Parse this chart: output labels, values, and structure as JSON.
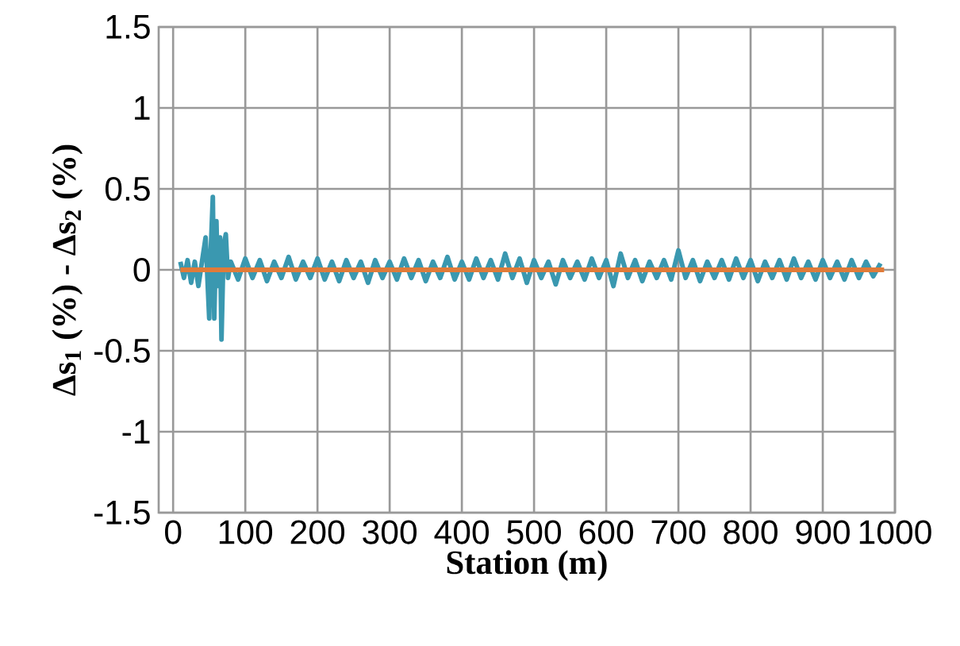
{
  "chart_data": {
    "type": "line",
    "xlabel": "Station (m)",
    "ylabel": "Δs$_{1}$ (%) - Δs$_{2}$ (%)",
    "xlim": [
      -20,
      1000
    ],
    "ylim": [
      -1.5,
      1.5
    ],
    "xticks": [
      0,
      100,
      200,
      300,
      400,
      500,
      600,
      700,
      800,
      900,
      1000
    ],
    "yticks": [
      -1.5,
      -1,
      -0.5,
      0,
      0.5,
      1,
      1.5
    ],
    "grid": true,
    "series": [
      {
        "color": "#3a98b0",
        "x": [
          10,
          15,
          20,
          25,
          30,
          35,
          40,
          45,
          48,
          50,
          52,
          55,
          57,
          60,
          62,
          65,
          67,
          70,
          73,
          76,
          80,
          90,
          100,
          110,
          120,
          130,
          140,
          150,
          160,
          170,
          180,
          190,
          200,
          210,
          220,
          230,
          240,
          250,
          260,
          270,
          280,
          290,
          300,
          310,
          320,
          330,
          340,
          350,
          360,
          370,
          380,
          390,
          400,
          410,
          420,
          430,
          440,
          450,
          460,
          470,
          480,
          490,
          500,
          510,
          520,
          530,
          540,
          550,
          560,
          570,
          580,
          590,
          600,
          610,
          620,
          630,
          640,
          650,
          660,
          670,
          680,
          690,
          700,
          710,
          720,
          730,
          740,
          750,
          760,
          770,
          780,
          790,
          800,
          810,
          820,
          830,
          840,
          850,
          860,
          870,
          880,
          890,
          900,
          910,
          920,
          930,
          940,
          950,
          960,
          970,
          980
        ],
        "values": [
          0.05,
          -0.05,
          0.06,
          -0.08,
          0.05,
          -0.1,
          0.05,
          0.2,
          -0.1,
          -0.3,
          0.1,
          0.45,
          -0.3,
          0.3,
          -0.1,
          0.2,
          -0.43,
          0.15,
          0.22,
          -0.05,
          0.05,
          -0.06,
          0.07,
          -0.05,
          0.06,
          -0.07,
          0.05,
          -0.05,
          0.08,
          -0.06,
          0.05,
          -0.05,
          0.07,
          -0.06,
          0.05,
          -0.07,
          0.06,
          -0.05,
          0.05,
          -0.08,
          0.06,
          -0.05,
          0.05,
          -0.06,
          0.07,
          -0.05,
          0.06,
          -0.07,
          0.05,
          -0.05,
          0.08,
          -0.06,
          0.05,
          -0.06,
          0.07,
          -0.05,
          0.06,
          -0.06,
          0.1,
          -0.05,
          0.07,
          -0.08,
          0.06,
          -0.05,
          0.05,
          -0.09,
          0.06,
          -0.05,
          0.05,
          -0.06,
          0.07,
          -0.05,
          0.06,
          -0.1,
          0.1,
          -0.05,
          0.06,
          -0.07,
          0.05,
          -0.05,
          0.06,
          -0.06,
          0.12,
          -0.05,
          0.06,
          -0.07,
          0.05,
          -0.05,
          0.06,
          -0.06,
          0.07,
          -0.05,
          0.06,
          -0.07,
          0.05,
          -0.05,
          0.06,
          -0.06,
          0.07,
          -0.05,
          0.05,
          -0.06,
          0.06,
          -0.05,
          0.05,
          -0.06,
          0.06,
          -0.05,
          0.05,
          -0.04,
          0.04
        ]
      },
      {
        "color": "#e07b39",
        "x": [
          10,
          985
        ],
        "values": [
          0,
          0
        ]
      }
    ]
  }
}
